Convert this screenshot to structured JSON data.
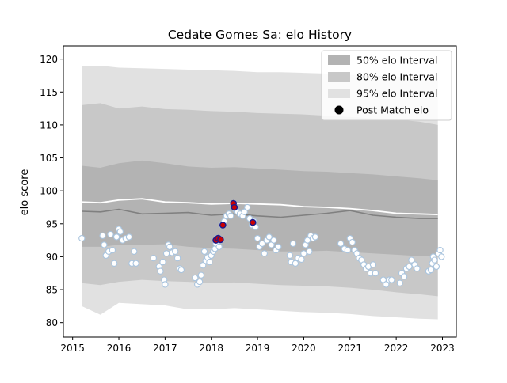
{
  "chart_data": {
    "type": "line",
    "title": "Cedate Gomes Sa: elo History",
    "xlabel": "",
    "ylabel": "elo score",
    "xlim": [
      2014.8,
      2023.3
    ],
    "ylim": [
      77.8,
      122.0
    ],
    "xticks": [
      2015,
      2016,
      2017,
      2018,
      2019,
      2020,
      2021,
      2022,
      2023
    ],
    "yticks": [
      80,
      85,
      90,
      95,
      100,
      105,
      110,
      115,
      120
    ],
    "legend_position": "top-right",
    "legend": [
      {
        "label": "50% elo Interval",
        "color": "#b3b3b3",
        "kind": "patch"
      },
      {
        "label": "80% elo Interval",
        "color": "#c8c8c8",
        "kind": "patch"
      },
      {
        "label": "95% elo Interval",
        "color": "#e1e1e1",
        "kind": "patch"
      },
      {
        "label": "Post Match elo",
        "color": "#000000",
        "kind": "marker"
      }
    ],
    "colors": {
      "band50": "#b3b3b3",
      "band80": "#c8c8c8",
      "band95": "#e1e1e1",
      "median_line": "#808080",
      "mean_line": "#ffffff",
      "point_fill": "#ffffff",
      "point_edge": "#a9c4de",
      "highlight_fill": "#cc0000",
      "highlight_edge": "#1a1a8c"
    },
    "intervals": {
      "x": [
        2015.2,
        2015.6,
        2016.0,
        2016.5,
        2017.0,
        2017.5,
        2018.0,
        2018.5,
        2019.0,
        2019.5,
        2020.0,
        2020.5,
        2021.0,
        2021.5,
        2022.0,
        2022.5,
        2022.9
      ],
      "band95_upper": [
        119.0,
        119.0,
        118.7,
        118.6,
        118.5,
        118.4,
        118.3,
        118.2,
        118.0,
        118.0,
        117.9,
        117.8,
        117.6,
        117.5,
        117.3,
        117.2,
        117.0
      ],
      "band95_lower": [
        82.5,
        81.2,
        83.0,
        82.8,
        82.6,
        82.0,
        82.0,
        82.2,
        82.0,
        81.8,
        81.6,
        81.5,
        81.3,
        81.0,
        80.8,
        80.6,
        80.5
      ],
      "band80_upper": [
        113.0,
        113.3,
        112.5,
        112.8,
        112.4,
        112.3,
        112.1,
        112.0,
        111.8,
        111.7,
        111.6,
        111.4,
        111.2,
        111.0,
        110.8,
        110.5,
        110.0
      ],
      "band80_lower": [
        86.0,
        85.7,
        86.2,
        86.5,
        86.3,
        86.2,
        86.0,
        86.1,
        85.9,
        85.7,
        85.6,
        85.5,
        85.3,
        85.0,
        84.6,
        84.3,
        84.0
      ],
      "band50_upper": [
        103.8,
        103.5,
        104.2,
        104.6,
        104.2,
        103.7,
        103.5,
        103.6,
        103.4,
        103.2,
        103.0,
        102.9,
        102.7,
        102.5,
        102.2,
        101.9,
        101.6
      ],
      "band50_lower": [
        91.5,
        91.5,
        91.8,
        91.8,
        91.9,
        91.5,
        91.3,
        91.2,
        91.0,
        90.8,
        90.8,
        90.9,
        90.7,
        90.5,
        90.3,
        90.1,
        90.0
      ],
      "median": [
        96.9,
        96.8,
        97.2,
        96.5,
        96.6,
        96.7,
        96.3,
        96.5,
        96.2,
        96.0,
        96.3,
        96.6,
        97.0,
        96.3,
        96.0,
        95.8,
        95.8
      ],
      "mean": [
        98.3,
        98.2,
        98.6,
        98.8,
        98.3,
        98.2,
        98.0,
        98.1,
        98.0,
        97.9,
        97.6,
        97.5,
        97.3,
        97.0,
        96.6,
        96.5,
        96.4
      ]
    },
    "series": [
      {
        "name": "Post Match elo",
        "points": [
          [
            2015.2,
            92.8
          ],
          [
            2015.65,
            93.2
          ],
          [
            2015.68,
            91.8
          ],
          [
            2015.72,
            90.2
          ],
          [
            2015.78,
            90.8
          ],
          [
            2015.82,
            93.4
          ],
          [
            2015.86,
            91.0
          ],
          [
            2015.9,
            89.0
          ],
          [
            2015.95,
            93.0
          ],
          [
            2016.0,
            94.2
          ],
          [
            2016.03,
            93.8
          ],
          [
            2016.08,
            92.5
          ],
          [
            2016.15,
            92.8
          ],
          [
            2016.22,
            93.0
          ],
          [
            2016.28,
            89.0
          ],
          [
            2016.33,
            90.8
          ],
          [
            2016.37,
            89.0
          ],
          [
            2016.75,
            89.8
          ],
          [
            2016.87,
            88.5
          ],
          [
            2016.9,
            87.8
          ],
          [
            2016.95,
            89.2
          ],
          [
            2016.98,
            86.5
          ],
          [
            2017.0,
            85.8
          ],
          [
            2017.03,
            90.5
          ],
          [
            2017.07,
            91.8
          ],
          [
            2017.1,
            91.5
          ],
          [
            2017.15,
            90.6
          ],
          [
            2017.22,
            90.8
          ],
          [
            2017.27,
            89.8
          ],
          [
            2017.32,
            88.2
          ],
          [
            2017.35,
            88.0
          ],
          [
            2017.65,
            86.8
          ],
          [
            2017.7,
            85.8
          ],
          [
            2017.75,
            86.2
          ],
          [
            2017.78,
            87.2
          ],
          [
            2017.82,
            88.7
          ],
          [
            2017.85,
            90.8
          ],
          [
            2017.88,
            89.4
          ],
          [
            2017.92,
            89.9
          ],
          [
            2017.96,
            89.2
          ],
          [
            2018.0,
            90.2
          ],
          [
            2018.04,
            90.8
          ],
          [
            2018.08,
            91.2
          ],
          [
            2018.1,
            92.0
          ],
          [
            2018.13,
            92.8
          ],
          [
            2018.17,
            91.5
          ],
          [
            2018.2,
            92.5
          ],
          [
            2018.23,
            94.8
          ],
          [
            2018.28,
            95.4
          ],
          [
            2018.33,
            96.2
          ],
          [
            2018.38,
            96.5
          ],
          [
            2018.42,
            96.2
          ],
          [
            2018.48,
            98.1
          ],
          [
            2018.52,
            97.2
          ],
          [
            2018.57,
            96.8
          ],
          [
            2018.62,
            96.5
          ],
          [
            2018.68,
            96.2
          ],
          [
            2018.72,
            96.8
          ],
          [
            2018.78,
            97.5
          ],
          [
            2018.83,
            95.8
          ],
          [
            2018.88,
            94.8
          ],
          [
            2018.92,
            95.4
          ],
          [
            2018.96,
            94.5
          ],
          [
            2019.0,
            92.8
          ],
          [
            2019.04,
            91.5
          ],
          [
            2019.1,
            92.0
          ],
          [
            2019.15,
            90.5
          ],
          [
            2019.2,
            92.5
          ],
          [
            2019.25,
            93.0
          ],
          [
            2019.3,
            91.8
          ],
          [
            2019.35,
            92.5
          ],
          [
            2019.4,
            91.0
          ],
          [
            2019.45,
            91.5
          ],
          [
            2019.7,
            90.2
          ],
          [
            2019.73,
            89.2
          ],
          [
            2019.77,
            92.0
          ],
          [
            2019.82,
            89.0
          ],
          [
            2019.88,
            89.8
          ],
          [
            2019.95,
            89.6
          ],
          [
            2020.0,
            90.5
          ],
          [
            2020.04,
            91.8
          ],
          [
            2020.08,
            92.5
          ],
          [
            2020.12,
            90.8
          ],
          [
            2020.15,
            93.2
          ],
          [
            2020.2,
            92.8
          ],
          [
            2020.25,
            93.0
          ],
          [
            2020.8,
            92.0
          ],
          [
            2020.88,
            91.2
          ],
          [
            2020.95,
            91.0
          ],
          [
            2021.0,
            92.8
          ],
          [
            2021.05,
            92.2
          ],
          [
            2021.1,
            91.0
          ],
          [
            2021.15,
            90.5
          ],
          [
            2021.2,
            89.8
          ],
          [
            2021.25,
            89.5
          ],
          [
            2021.3,
            88.8
          ],
          [
            2021.35,
            88.2
          ],
          [
            2021.4,
            88.5
          ],
          [
            2021.45,
            87.5
          ],
          [
            2021.5,
            88.8
          ],
          [
            2021.55,
            87.5
          ],
          [
            2021.72,
            86.5
          ],
          [
            2021.78,
            85.8
          ],
          [
            2021.85,
            86.5
          ],
          [
            2021.9,
            86.5
          ],
          [
            2022.08,
            86.0
          ],
          [
            2022.12,
            87.5
          ],
          [
            2022.17,
            87.0
          ],
          [
            2022.22,
            88.2
          ],
          [
            2022.28,
            88.5
          ],
          [
            2022.33,
            89.5
          ],
          [
            2022.4,
            88.8
          ],
          [
            2022.45,
            88.2
          ],
          [
            2022.7,
            87.8
          ],
          [
            2022.75,
            88.0
          ],
          [
            2022.78,
            89.0
          ],
          [
            2022.8,
            90.0
          ],
          [
            2022.83,
            89.5
          ],
          [
            2022.87,
            88.5
          ],
          [
            2022.92,
            90.5
          ],
          [
            2022.95,
            91.0
          ],
          [
            2022.98,
            90.0
          ]
        ],
        "highlighted": [
          [
            2018.1,
            92.5
          ],
          [
            2018.15,
            92.8
          ],
          [
            2018.2,
            92.6
          ],
          [
            2018.25,
            94.8
          ],
          [
            2018.48,
            98.1
          ],
          [
            2018.5,
            97.5
          ],
          [
            2018.9,
            95.2
          ]
        ]
      }
    ]
  }
}
